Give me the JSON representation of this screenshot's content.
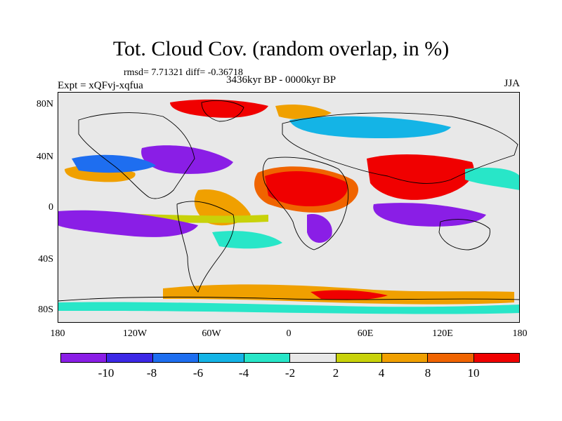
{
  "title": "Tot. Cloud Cov. (random overlap, in %)",
  "rmsd_text": "rmsd= 7.71321 diff= -0.36718",
  "expt_text": "Expt = xQFvj-xqfua",
  "period_text": "3436kyr BP - 0000kyr BP",
  "season_text": "JJA",
  "axes": {
    "y_ticks": [
      "80N",
      "40N",
      "0",
      "40S",
      "80S"
    ],
    "x_ticks": [
      "180",
      "120W",
      "60W",
      "0",
      "60E",
      "120E",
      "180"
    ]
  },
  "colorbar": {
    "colors": [
      "#8a1ee6",
      "#3c28e6",
      "#1e6ef0",
      "#14b4e6",
      "#28e6c8",
      "#e8e8e8",
      "#c8d20a",
      "#f0a000",
      "#f06400",
      "#f00000"
    ],
    "labels": [
      "-10",
      "-8",
      "-6",
      "-4",
      "-2",
      "2",
      "4",
      "8",
      "10"
    ]
  },
  "colors": {
    "background_field": "#e8e8e8",
    "land_outline": "#000000"
  }
}
